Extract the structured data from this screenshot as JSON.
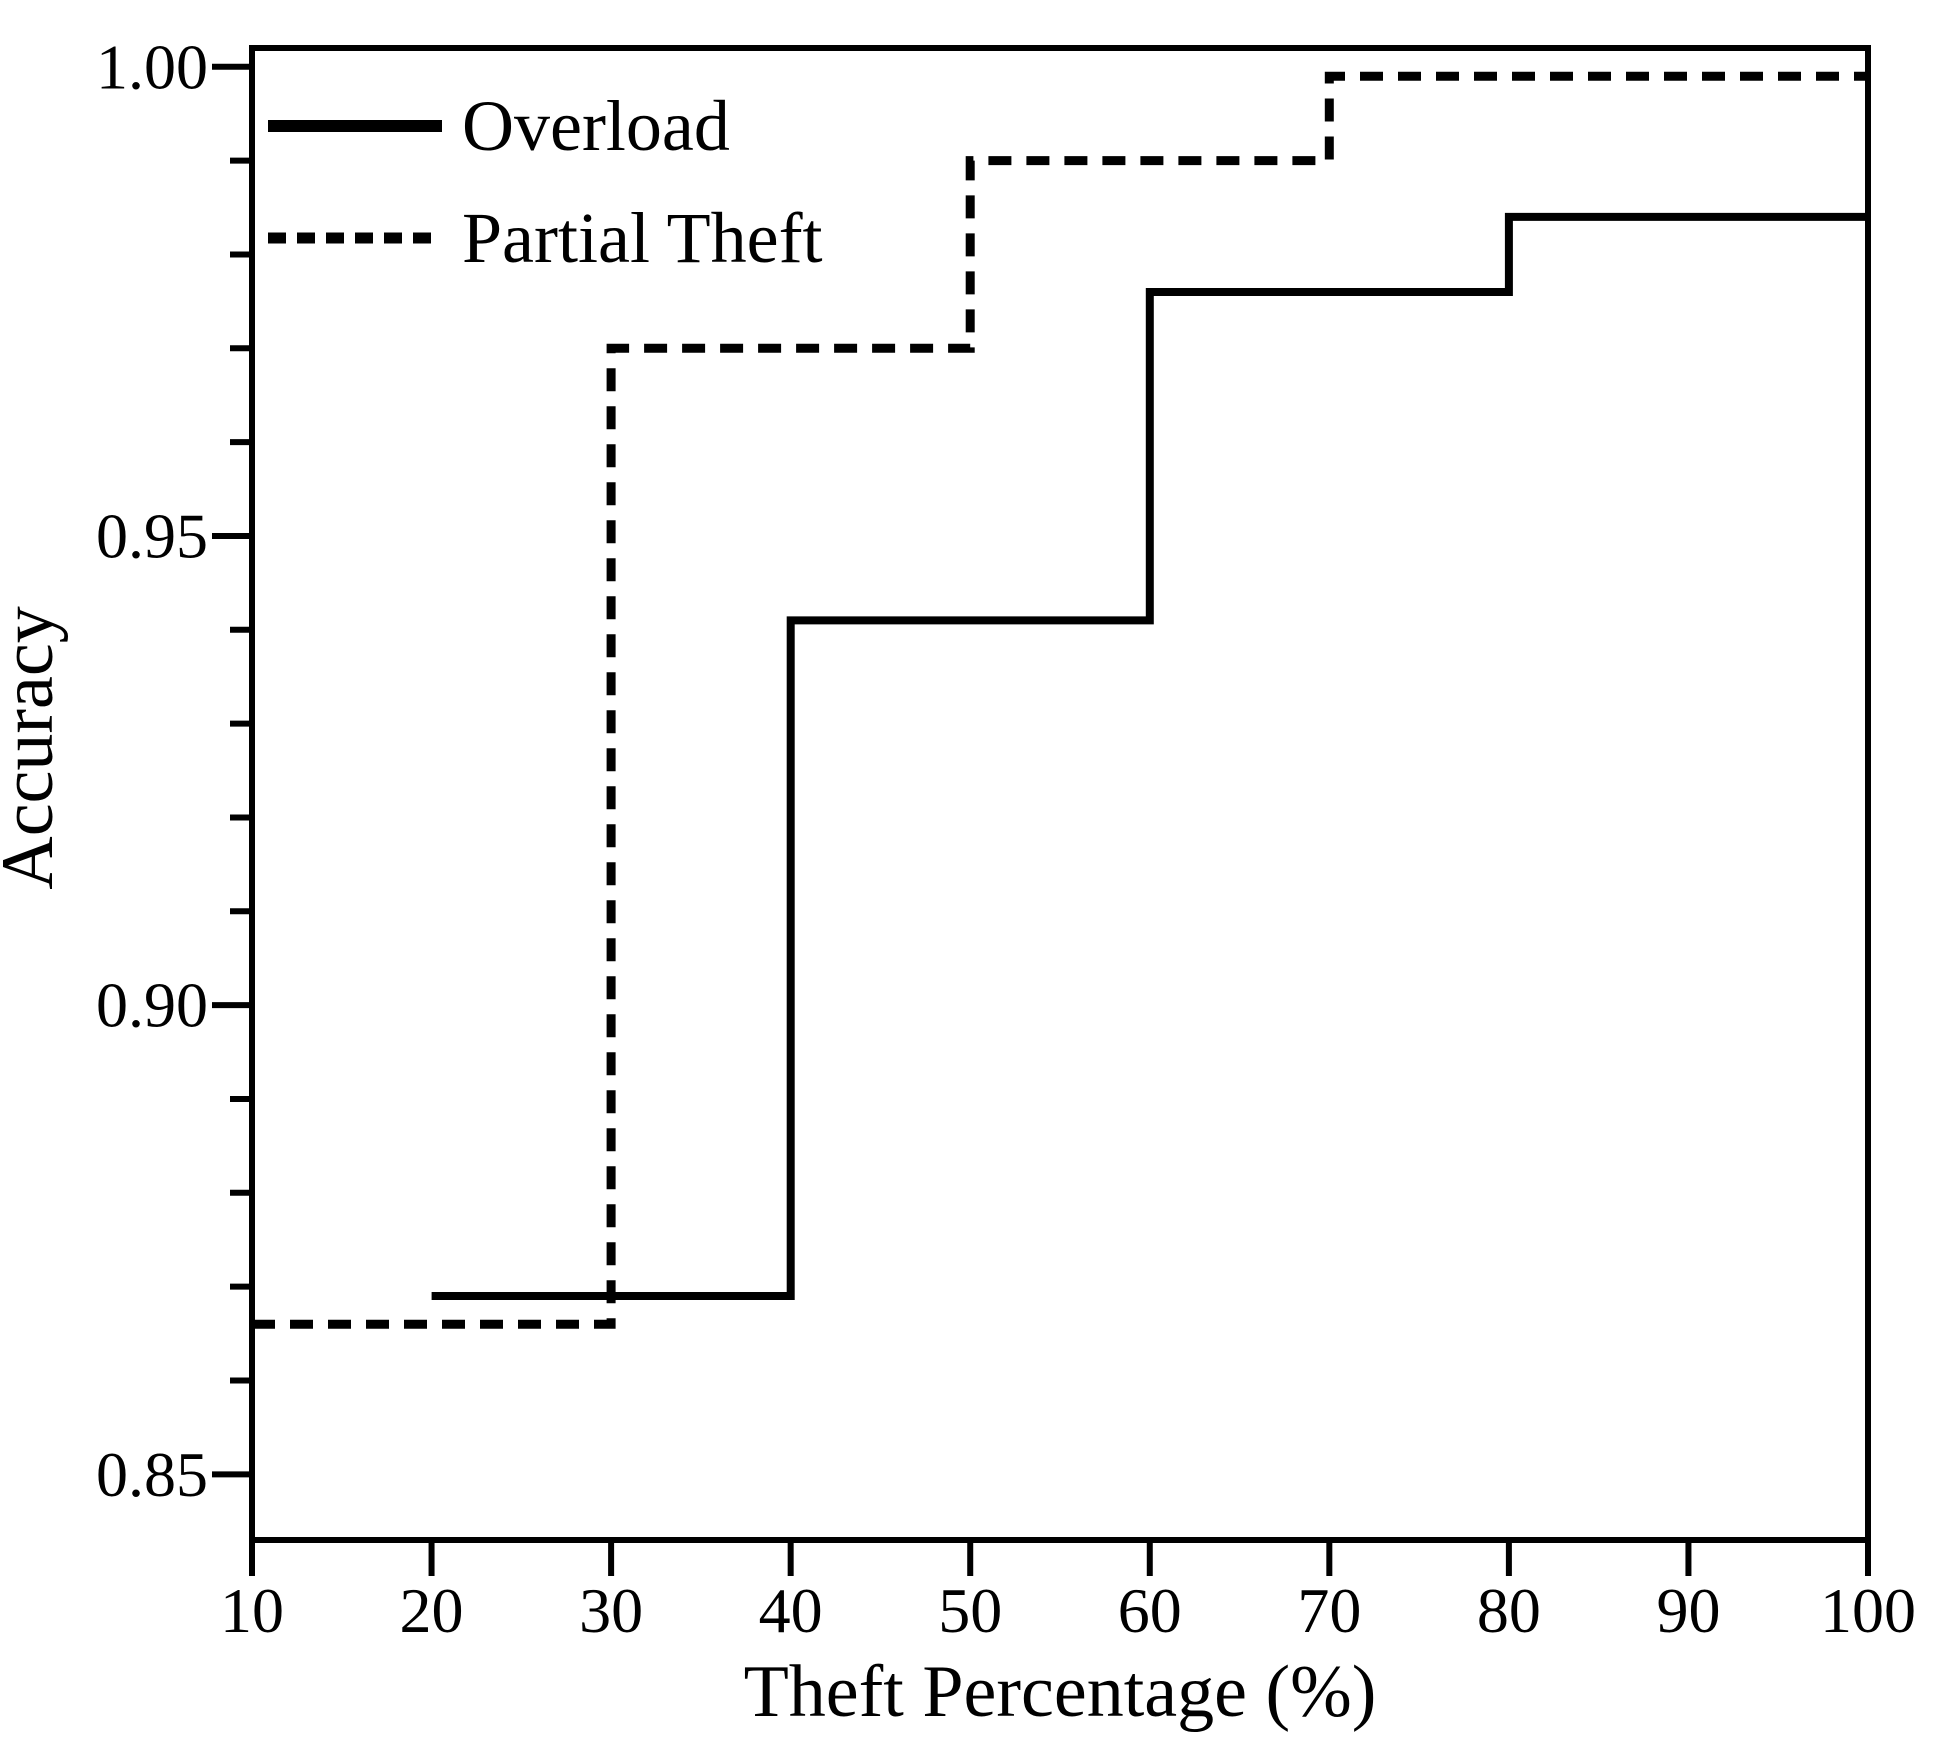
{
  "page": {
    "background": "#ffffff",
    "ink": "#000000"
  },
  "chart_data": {
    "type": "line",
    "subtype": "step",
    "title": "",
    "xlabel": "Theft Percentage (%)",
    "ylabel": "Accuracy",
    "x_axis": {
      "min": 10,
      "max": 100,
      "ticks": [
        10,
        20,
        30,
        40,
        50,
        60,
        70,
        80,
        90,
        100
      ]
    },
    "y_axis": {
      "min": 0.843,
      "max": 1.002,
      "major_ticks": [
        {
          "value": 1.0,
          "label": "1.00"
        },
        {
          "value": 0.95,
          "label": "0.95"
        },
        {
          "value": 0.9,
          "label": "0.90"
        },
        {
          "value": 0.85,
          "label": "0.85"
        }
      ],
      "minor_tick_step": 0.01
    },
    "grid": false,
    "frame": true,
    "line_color": "#000000",
    "legend": {
      "position": "top-left",
      "entries": [
        {
          "label": "Overload",
          "line_style": "solid"
        },
        {
          "label": "Partial Theft",
          "line_style": "dashed"
        }
      ]
    },
    "series": [
      {
        "name": "Overload",
        "line_style": "solid",
        "points": [
          [
            20,
            0.869
          ],
          [
            40,
            0.869
          ],
          [
            40,
            0.941
          ],
          [
            60,
            0.941
          ],
          [
            60,
            0.976
          ],
          [
            80,
            0.976
          ],
          [
            80,
            0.984
          ],
          [
            100,
            0.984
          ]
        ]
      },
      {
        "name": "Partial Theft",
        "line_style": "dashed",
        "points": [
          [
            10,
            0.866
          ],
          [
            30,
            0.866
          ],
          [
            30,
            0.97
          ],
          [
            50,
            0.97
          ],
          [
            50,
            0.99
          ],
          [
            70,
            0.99
          ],
          [
            70,
            0.999
          ],
          [
            100,
            0.999
          ]
        ]
      }
    ]
  }
}
